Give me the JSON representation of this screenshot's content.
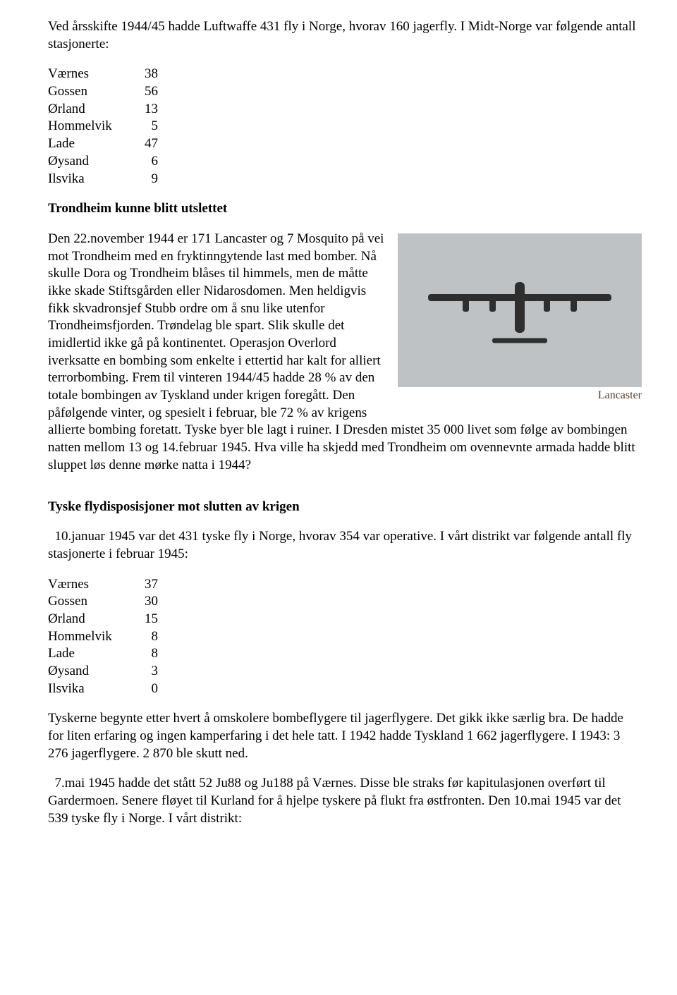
{
  "intro": "Ved årsskifte 1944/45 hadde Luftwaffe 431 fly i Norge, hvorav 160 jagerfly.  I Midt-Norge var følgende antall stasjonerte:",
  "table1": {
    "rows": [
      [
        "Værnes",
        "38"
      ],
      [
        "Gossen",
        "56"
      ],
      [
        "Ørland",
        "13"
      ],
      [
        "Hommelvik",
        "5"
      ],
      [
        "Lade",
        "47"
      ],
      [
        "Øysand",
        "6"
      ],
      [
        "Ilsvika",
        "9"
      ]
    ]
  },
  "heading1": "Trondheim kunne blitt utslettet",
  "figure": {
    "caption": "Lancaster",
    "bg_color": "#bfc2c4",
    "plane_color": "#2e2e2e"
  },
  "para1": "Den 22.november 1944 er 171 Lancaster og 7 Mosquito på vei mot Trondheim med en fryktinngytende last med bomber. Nå skulle Dora og Trondheim blåses til himmels, men de måtte ikke skade Stiftsgården eller Nidarosdomen. Men heldigvis fikk skvadronsjef Stubb ordre om å snu like utenfor Trondheimsfjorden. Trøndelag ble spart. Slik skulle det imidlertid ikke gå på kontinentet. Operasjon Overlord iverksatte en bombing som enkelte i ettertid har kalt for alliert terrorbombing. Frem til vinteren 1944/45 hadde 28 % av den totale bombingen av Tyskland under krigen foregått. Den påfølgende vinter, og spesielt i februar, ble 72 % av krigens allierte bombing foretatt. Tyske byer ble lagt i ruiner. I Dresden mistet 35 000 livet som følge av bombingen natten mellom 13 og 14.februar 1945. Hva ville ha skjedd med Trondheim om ovennevnte armada hadde blitt sluppet løs denne mørke natta i 1944?",
  "heading2": "Tyske flydisposisjoner mot slutten av krigen",
  "para2": "  10.januar 1945 var det 431 tyske fly i Norge, hvorav 354 var operative. I vårt distrikt var følgende antall fly stasjonerte i februar 1945:",
  "table2": {
    "rows": [
      [
        "Værnes",
        "37"
      ],
      [
        "Gossen",
        "30"
      ],
      [
        "Ørland",
        "15"
      ],
      [
        "Hommelvik",
        "8"
      ],
      [
        "Lade",
        "8"
      ],
      [
        "Øysand",
        "3"
      ],
      [
        "Ilsvika",
        "0"
      ]
    ]
  },
  "para3": "Tyskerne begynte etter hvert å omskolere bombeflygere til jagerflygere. Det gikk ikke særlig bra. De hadde for liten erfaring og ingen kamperfaring i det hele tatt. I 1942 hadde Tyskland 1 662 jagerflygere. I 1943: 3 276 jagerflygere. 2 870 ble skutt ned.",
  "para4": "  7.mai 1945 hadde det stått 52 Ju88 og Ju188 på Værnes. Disse ble straks før kapitulasjonen overført til Gardermoen. Senere fløyet til Kurland for å hjelpe tyskere på flukt fra østfronten. Den 10.mai 1945 var det 539 tyske fly i Norge. I vårt distrikt:"
}
